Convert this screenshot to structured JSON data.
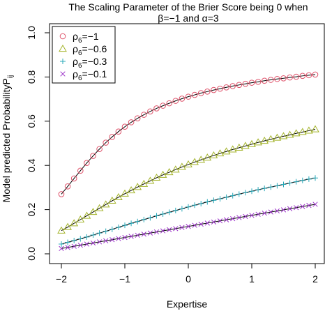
{
  "chart_data": {
    "type": "line",
    "title_line1": "The Scaling Parameter of the Brier Score being 0 when",
    "title_line2": "β=−1 and α=3",
    "xlabel": "Expertise",
    "ylabel_main": "Model predicted Probability",
    "ylabel_symbol": "P",
    "ylabel_sub": "ij",
    "xlim": [
      -2,
      2
    ],
    "ylim": [
      0,
      1
    ],
    "xticks": [
      -2,
      -1,
      0,
      1,
      2
    ],
    "xtick_labels": [
      "−2",
      "−1",
      "0",
      "1",
      "2"
    ],
    "yticks": [
      0,
      0.2,
      0.4,
      0.6,
      0.8,
      1
    ],
    "ytick_labels": [
      "0.0",
      "0.2",
      "0.4",
      "0.6",
      "0.8",
      "1.0"
    ],
    "grid": false,
    "legend_position": "top-left",
    "legend_symbol": "ρ",
    "legend_sub": "6",
    "x": [
      -2.0,
      -1.9,
      -1.8,
      -1.7,
      -1.6,
      -1.5,
      -1.4,
      -1.3,
      -1.2,
      -1.1,
      -1.0,
      -0.9,
      -0.8,
      -0.7,
      -0.6,
      -0.5,
      -0.4,
      -0.3,
      -0.2,
      -0.1,
      0.0,
      0.1,
      0.2,
      0.3,
      0.4,
      0.5,
      0.6,
      0.7,
      0.8,
      0.9,
      1.0,
      1.1,
      1.2,
      1.3,
      1.4,
      1.5,
      1.6,
      1.7,
      1.8,
      1.9,
      2.0
    ],
    "series": [
      {
        "name": "=−1",
        "marker": "circle",
        "color": "#DF536B",
        "values": [
          0.27,
          0.305,
          0.341,
          0.376,
          0.411,
          0.443,
          0.474,
          0.503,
          0.529,
          0.553,
          0.575,
          0.595,
          0.613,
          0.629,
          0.644,
          0.658,
          0.67,
          0.681,
          0.692,
          0.702,
          0.711,
          0.719,
          0.727,
          0.734,
          0.741,
          0.747,
          0.753,
          0.759,
          0.764,
          0.769,
          0.774,
          0.778,
          0.783,
          0.787,
          0.791,
          0.794,
          0.798,
          0.801,
          0.805,
          0.808,
          0.811
        ]
      },
      {
        "name": "=−0.6",
        "marker": "triangle",
        "color": "#A4B42B",
        "values": [
          0.105,
          0.121,
          0.138,
          0.155,
          0.172,
          0.189,
          0.206,
          0.223,
          0.24,
          0.256,
          0.272,
          0.287,
          0.302,
          0.316,
          0.33,
          0.344,
          0.357,
          0.369,
          0.381,
          0.393,
          0.404,
          0.415,
          0.425,
          0.435,
          0.445,
          0.454,
          0.463,
          0.472,
          0.48,
          0.488,
          0.496,
          0.504,
          0.511,
          0.518,
          0.525,
          0.532,
          0.538,
          0.545,
          0.551,
          0.557,
          0.563
        ]
      },
      {
        "name": "=−0.3",
        "marker": "plus",
        "color": "#28A8B8",
        "values": [
          0.044,
          0.052,
          0.06,
          0.068,
          0.076,
          0.085,
          0.094,
          0.102,
          0.111,
          0.12,
          0.129,
          0.138,
          0.146,
          0.155,
          0.163,
          0.172,
          0.18,
          0.188,
          0.196,
          0.204,
          0.212,
          0.22,
          0.227,
          0.235,
          0.242,
          0.249,
          0.256,
          0.263,
          0.27,
          0.277,
          0.283,
          0.29,
          0.296,
          0.302,
          0.308,
          0.314,
          0.32,
          0.326,
          0.332,
          0.338,
          0.343
        ]
      },
      {
        "name": "=−0.1",
        "marker": "cross",
        "color": "#9B32C8",
        "values": [
          0.024,
          0.029,
          0.034,
          0.039,
          0.044,
          0.049,
          0.054,
          0.059,
          0.064,
          0.069,
          0.074,
          0.079,
          0.084,
          0.089,
          0.094,
          0.099,
          0.104,
          0.109,
          0.114,
          0.119,
          0.124,
          0.129,
          0.134,
          0.139,
          0.144,
          0.149,
          0.154,
          0.159,
          0.164,
          0.169,
          0.174,
          0.179,
          0.184,
          0.189,
          0.194,
          0.199,
          0.204,
          0.209,
          0.214,
          0.219,
          0.224
        ]
      }
    ]
  }
}
